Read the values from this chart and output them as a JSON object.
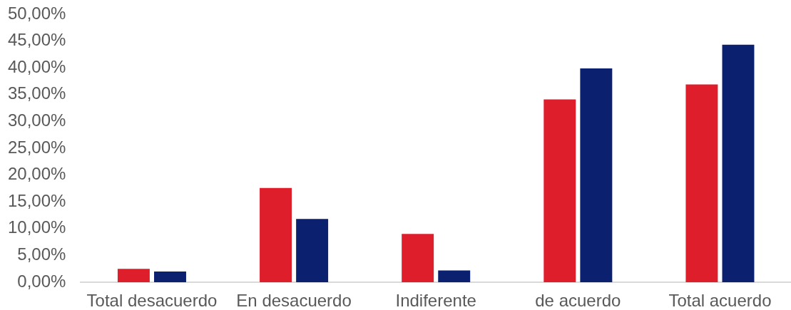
{
  "chart_data": {
    "type": "bar",
    "categories": [
      "Total desacuerdo",
      "En desacuerdo",
      "Indiferente",
      "de acuerdo",
      "Total acuerdo"
    ],
    "series": [
      {
        "color": "#de1e2b",
        "values": [
          2.5,
          17.6,
          9.0,
          34.1,
          36.9
        ]
      },
      {
        "color": "#0c2070",
        "values": [
          2.0,
          11.8,
          2.2,
          39.9,
          44.3
        ]
      }
    ],
    "ylim": [
      0,
      50
    ],
    "yticks": [
      {
        "value": 0,
        "label": "0,00%"
      },
      {
        "value": 5,
        "label": "5,00%"
      },
      {
        "value": 10,
        "label": "10,00%"
      },
      {
        "value": 15,
        "label": "15,00%"
      },
      {
        "value": 20,
        "label": "20,00%"
      },
      {
        "value": 25,
        "label": "25,00%"
      },
      {
        "value": 30,
        "label": "30,00%"
      },
      {
        "value": 35,
        "label": "35,00%"
      },
      {
        "value": 40,
        "label": "40,00%"
      },
      {
        "value": 45,
        "label": "45,00%"
      },
      {
        "value": 50,
        "label": "50,00%"
      }
    ]
  }
}
